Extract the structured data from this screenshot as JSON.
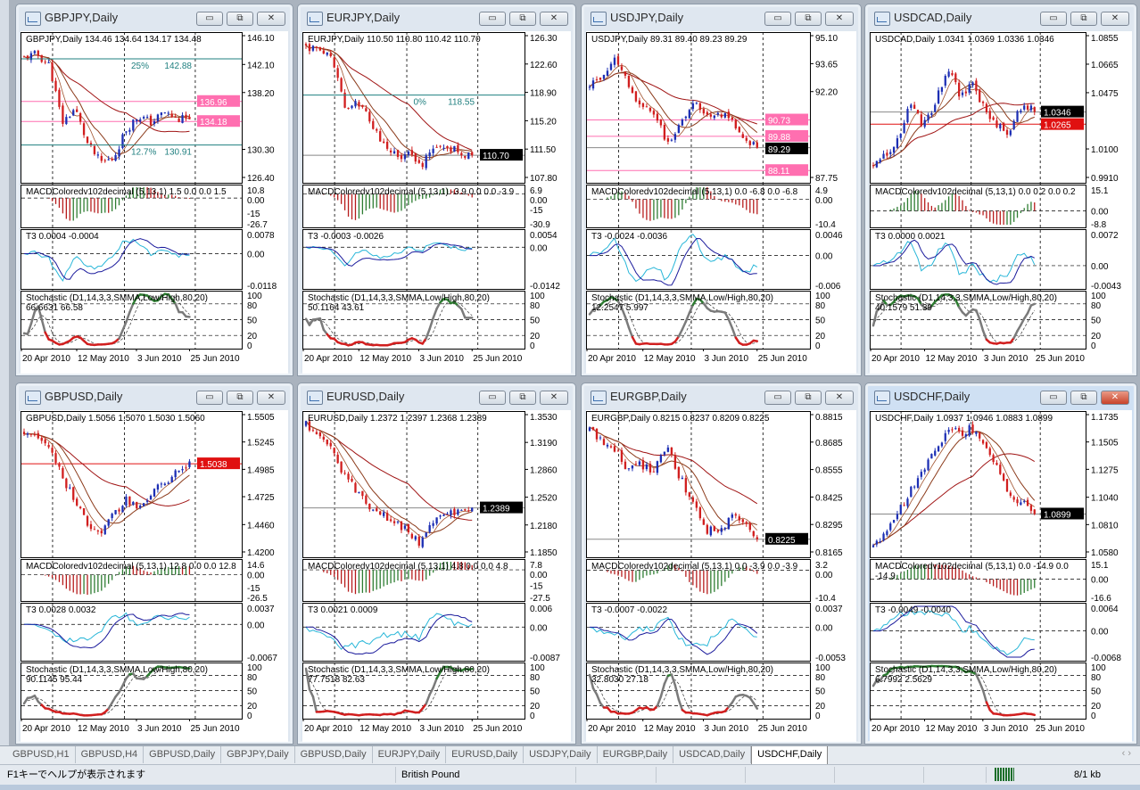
{
  "colors": {
    "bull": "#1d2fb4",
    "bear": "#d11f1f",
    "ma_fast": "#8b3a1a",
    "ma_slow": "#a01414",
    "pink": "#ff6fb0",
    "teal": "#1f7f7f",
    "t3_fast": "#27b6d8",
    "t3_slow": "#1a1a9c",
    "macd_up": "#2e7d32",
    "macd_down": "#b71c1c",
    "stoch": "#7a7a7a"
  },
  "common": {
    "dates": [
      "20 Apr 2010",
      "12 May 2010",
      "3 Jun 2010",
      "25 Jun 2010"
    ],
    "stoch_axis": [
      "100",
      "80",
      "50",
      "20",
      "0"
    ]
  },
  "windows": [
    {
      "title": "GBPJPY,Daily",
      "ohlc": "GBPJPY,Daily  134.46 134.64 134.17 134.48",
      "axis": [
        "146.10",
        "142.10",
        "138.20",
        "130.30",
        "126.40"
      ],
      "tags": [
        {
          "value": "136.96",
          "color": "#ff6fb0"
        },
        {
          "value": "134.18",
          "color": "#ff6fb0"
        }
      ],
      "fib": [
        {
          "label": "25%",
          "value": "142.88"
        },
        {
          "label": "12.7%",
          "value": "130.91"
        }
      ],
      "closes": [
        143,
        143.5,
        142,
        134,
        136,
        131,
        128.5,
        129,
        133,
        135,
        134,
        135.5,
        134.5,
        134.48
      ],
      "macd": {
        "label": "MACDColoredv102decimal (5,13,1) 1.5 0.0 0.0 1.5",
        "axis": [
          "10.8",
          "0.00",
          "-15",
          "-26.7"
        ]
      },
      "t3": {
        "label": "T3 0.0004 -0.0004",
        "axis": [
          "0.0078",
          "0.00",
          "-0.0118"
        ]
      },
      "stoch": {
        "label": "Stochastic (D1,14,3,3,SMMA,Low/High,80,20) 66.6631 66.58"
      }
    },
    {
      "title": "EURJPY,Daily",
      "ohlc": "EURJPY,Daily  110.50 110.80 110.42 110.70",
      "axis": [
        "126.30",
        "122.60",
        "118.90",
        "115.20",
        "111.50",
        "107.80"
      ],
      "tags": [
        {
          "value": "110.70",
          "color": "#000000"
        }
      ],
      "fib": [
        {
          "label": "0%",
          "value": "118.55"
        }
      ],
      "closes": [
        125,
        124.5,
        124,
        117,
        118,
        115,
        112.5,
        110.5,
        111,
        109,
        112,
        112,
        111,
        110.7
      ],
      "macd": {
        "label": "MACDColoredv102decimal (5,13,1) -3.9 0.0 0.0 -3.9",
        "axis": [
          "6.9",
          "0.00",
          "-15",
          "-30.9"
        ]
      },
      "t3": {
        "label": "T3 -0.0003 -0.0026",
        "axis": [
          "0.0054",
          "0.00",
          "-0.0142"
        ]
      },
      "stoch": {
        "label": "Stochastic (D1,14,3,3,SMMA,Low/High,80,20) 50.1164 43.61"
      }
    },
    {
      "title": "USDJPY,Daily",
      "ohlc": "USDJPY,Daily  89.31 89.40 89.23 89.29",
      "axis": [
        "95.10",
        "93.65",
        "92.20",
        "87.75"
      ],
      "tags": [
        {
          "value": "90.73",
          "color": "#ff6fb0"
        },
        {
          "value": "89.88",
          "color": "#ff6fb0"
        },
        {
          "value": "89.29",
          "color": "#000000"
        },
        {
          "value": "88.11",
          "color": "#ff6fb0"
        }
      ],
      "fib": [],
      "closes": [
        92.5,
        93,
        94,
        92.5,
        91.5,
        91,
        89.6,
        90.5,
        91.8,
        91,
        91.2,
        90.6,
        89.8,
        89.29
      ],
      "macd": {
        "label": "MACDColoredv102decimal (5,13,1) 0.0 -6.8 0.0 -6.8",
        "axis": [
          "4.9",
          "0.00",
          "-10.4"
        ]
      },
      "t3": {
        "label": "T3 -0.0024 -0.0036",
        "axis": [
          "0.0046",
          "0.00",
          "-0.006"
        ]
      },
      "stoch": {
        "label": "Stochastic (D1,14,3,3,SMMA,Low/High,80,20) 12.2547 5.997"
      }
    },
    {
      "title": "USDCAD,Daily",
      "ohlc": "USDCAD,Daily  1.0341 1.0369 1.0336 1.0346",
      "axis": [
        "1.0855",
        "1.0665",
        "1.0475",
        "1.0100",
        "0.9910"
      ],
      "tags": [
        {
          "value": "1.0346",
          "color": "#000000"
        },
        {
          "value": "1.0265",
          "color": "#e01010"
        }
      ],
      "fib": [],
      "closes": [
        1.0,
        1.005,
        1.015,
        1.04,
        1.025,
        1.04,
        1.065,
        1.045,
        1.055,
        1.035,
        1.025,
        1.02,
        1.04,
        1.0346
      ],
      "macd": {
        "label": "MACDColoredv102decimal (5,13,1) 0.0 0.2 0.0 0.2",
        "axis": [
          "15.1",
          "0.00",
          "-8.8"
        ]
      },
      "t3": {
        "label": "T3 0.0000 0.0021",
        "axis": [
          "0.0072",
          "0.00",
          "-0.0043"
        ]
      },
      "stoch": {
        "label": "Stochastic (D1,14,3,3,SMMA,Low/High,80,20) 40.1579 51.39"
      }
    },
    {
      "title": "GBPUSD,Daily",
      "ohlc": "GBPUSD,Daily  1.5056 1.5070 1.5030 1.5060",
      "axis": [
        "1.5505",
        "1.5245",
        "1.4985",
        "1.4725",
        "1.4460",
        "1.4200"
      ],
      "tags": [
        {
          "value": "1.5038",
          "color": "#e01010"
        }
      ],
      "fib": [],
      "closes": [
        1.535,
        1.53,
        1.52,
        1.49,
        1.47,
        1.445,
        1.44,
        1.455,
        1.47,
        1.46,
        1.475,
        1.485,
        1.495,
        1.506
      ],
      "macd": {
        "label": "MACDColoredv102decimal (5,13,1) 12.8 0.0 0.0 12.8",
        "axis": [
          "14.6",
          "0.00",
          "-15",
          "-26.5"
        ]
      },
      "t3": {
        "label": "T3 0.0028 0.0032",
        "axis": [
          "0.0037",
          "0.00",
          "-0.0067"
        ]
      },
      "stoch": {
        "label": "Stochastic (D1,14,3,3,SMMA,Low/High,80,20) 90.1145 95.44"
      }
    },
    {
      "title": "EURUSD,Daily",
      "ohlc": "EURUSD,Daily  1.2372 1.2397 1.2368 1.2389",
      "axis": [
        "1.3530",
        "1.3190",
        "1.2860",
        "1.2520",
        "1.2180",
        "1.1850"
      ],
      "tags": [
        {
          "value": "1.2389",
          "color": "#000000"
        }
      ],
      "fib": [],
      "closes": [
        1.34,
        1.33,
        1.31,
        1.28,
        1.26,
        1.238,
        1.23,
        1.22,
        1.212,
        1.195,
        1.222,
        1.236,
        1.234,
        1.2389
      ],
      "macd": {
        "label": "MACDColoredv102decimal (5,13,1) 4.8 0.0 0.0 4.8",
        "axis": [
          "7.8",
          "0.00",
          "-15",
          "-27.5"
        ]
      },
      "t3": {
        "label": "T3 0.0021 0.0009",
        "axis": [
          "0.006",
          "0.00",
          "-0.0087"
        ]
      },
      "stoch": {
        "label": "Stochastic (D1,14,3,3,SMMA,Low/High,80,20) 77.7518 82.63"
      }
    },
    {
      "title": "EURGBP,Daily",
      "ohlc": "EURGBP,Daily  0.8215 0.8237 0.8209 0.8225",
      "axis": [
        "0.8815",
        "0.8685",
        "0.8555",
        "0.8425",
        "0.8295",
        "0.8165"
      ],
      "tags": [
        {
          "value": "0.8225",
          "color": "#000000"
        }
      ],
      "fib": [],
      "closes": [
        0.874,
        0.868,
        0.865,
        0.855,
        0.858,
        0.855,
        0.866,
        0.852,
        0.84,
        0.827,
        0.826,
        0.833,
        0.83,
        0.8225
      ],
      "macd": {
        "label": "MACDColoredv102decimal (5,13,1) 0.0 -3.9 0.0 -3.9",
        "axis": [
          "3.2",
          "0.00",
          "-10.4"
        ]
      },
      "t3": {
        "label": "T3 -0.0007 -0.0022",
        "axis": [
          "0.0037",
          "0.00",
          "-0.0053"
        ]
      },
      "stoch": {
        "label": "Stochastic (D1,14,3,3,SMMA,Low/High,80,20) 32.8030 27.18"
      }
    },
    {
      "title": "USDCHF,Daily",
      "ohlc": "USDCHF,Daily  1.0937 1.0946 1.0883 1.0899",
      "axis": [
        "1.1735",
        "1.1505",
        "1.1275",
        "1.1040",
        "1.0810",
        "1.0580"
      ],
      "tags": [
        {
          "value": "1.0899",
          "color": "#000000"
        }
      ],
      "fib": [],
      "closes": [
        1.062,
        1.075,
        1.09,
        1.11,
        1.125,
        1.145,
        1.16,
        1.158,
        1.162,
        1.15,
        1.13,
        1.105,
        1.1,
        1.0899
      ],
      "macd": {
        "label": "MACDColoredv102decimal (5,13,1) 0.0 -14.9 0.0 -14.9",
        "axis": [
          "15.1",
          "0.00",
          "-16.6"
        ]
      },
      "t3": {
        "label": "T3 -0.0049 -0.0040",
        "axis": [
          "0.0064",
          "0.00",
          "-0.0068"
        ]
      },
      "stoch": {
        "label": "Stochastic (D1,14,3,3,SMMA,Low/High,80,20) 6.7992 2.5629"
      },
      "active": true
    }
  ],
  "tabs": [
    "GBPUSD,H1",
    "GBPUSD,H4",
    "GBPUSD,Daily",
    "GBPJPY,Daily",
    "GBPUSD,Daily",
    "EURJPY,Daily",
    "EURUSD,Daily",
    "USDJPY,Daily",
    "EURGBP,Daily",
    "USDCAD,Daily",
    "USDCHF,Daily"
  ],
  "active_tab": 10,
  "tab_nav": "‹ ›",
  "status": {
    "help": "F1キーでヘルプが表示されます",
    "symbol": "British Pound",
    "traffic": "8/1 kb"
  },
  "window_buttons": {
    "minimize": "▭",
    "restore": "⧉",
    "close": "✕"
  }
}
